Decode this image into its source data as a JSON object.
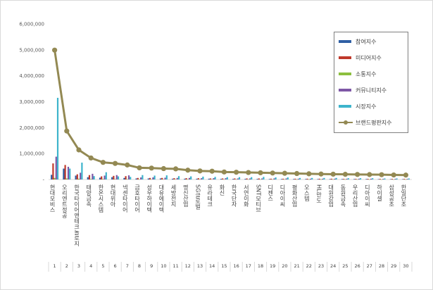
{
  "chart_data": {
    "type": "bar",
    "ylim": [
      0,
      6000000
    ],
    "yticks": [
      "6,000,000",
      "5,000,000",
      "4,000,000",
      "3,000,000",
      "2,000,000",
      "1,000,000",
      "-"
    ],
    "grid": false,
    "legend_position": "top-right",
    "categories": [
      "현대모비스",
      "오리엔트정공",
      "한국타이어앤테크놀로지",
      "태양금속",
      "한온시스템",
      "현대위아",
      "넥센타이어",
      "금호타이어",
      "성우하이텍",
      "대유에이텍",
      "세방전지",
      "명신산업",
      "SG글로벌",
      "유라테크",
      "화신",
      "한국단자",
      "서연이화",
      "SNT모티브",
      "디젠스",
      "디아이씨",
      "평화산업",
      "오스템",
      "HL만도",
      "대원강업",
      "동원금속",
      "우리산업",
      "디아이씨",
      "하이셀",
      "삼성공조",
      "한일단조"
    ],
    "numbers": [
      "1",
      "2",
      "3",
      "4",
      "5",
      "6",
      "7",
      "8",
      "9",
      "10",
      "11",
      "12",
      "13",
      "14",
      "15",
      "16",
      "17",
      "18",
      "19",
      "20",
      "21",
      "22",
      "23",
      "24",
      "25",
      "26",
      "27",
      "28",
      "29",
      "30"
    ],
    "series": [
      {
        "name": "참여지수",
        "color": "#2f5fa4",
        "values": [
          180000,
          420000,
          150000,
          90000,
          70000,
          90000,
          60000,
          40000,
          40000,
          40000,
          30000,
          30000,
          30000,
          30000,
          25000,
          25000,
          25000,
          25000,
          20000,
          20000,
          20000,
          20000,
          20000,
          20000,
          20000,
          20000,
          20000,
          15000,
          15000,
          15000
        ]
      },
      {
        "name": "미디어지수",
        "color": "#c0392b",
        "values": [
          620000,
          560000,
          200000,
          170000,
          120000,
          140000,
          130000,
          60000,
          60000,
          60000,
          50000,
          50000,
          50000,
          40000,
          40000,
          40000,
          40000,
          40000,
          30000,
          30000,
          30000,
          30000,
          30000,
          30000,
          25000,
          25000,
          25000,
          25000,
          25000,
          25000
        ]
      },
      {
        "name": "소통지수",
        "color": "#8cbf3f",
        "values": [
          60000,
          40000,
          30000,
          20000,
          20000,
          15000,
          15000,
          10000,
          10000,
          10000,
          10000,
          10000,
          10000,
          10000,
          8000,
          8000,
          8000,
          8000,
          8000,
          8000,
          6000,
          6000,
          6000,
          6000,
          6000,
          6000,
          6000,
          5000,
          5000,
          5000
        ]
      },
      {
        "name": "커뮤니티지수",
        "color": "#7e57a6",
        "values": [
          880000,
          490000,
          260000,
          220000,
          150000,
          170000,
          160000,
          80000,
          80000,
          70000,
          60000,
          60000,
          50000,
          50000,
          50000,
          40000,
          40000,
          40000,
          40000,
          40000,
          30000,
          30000,
          30000,
          30000,
          30000,
          30000,
          30000,
          25000,
          25000,
          25000
        ]
      },
      {
        "name": "시장지수",
        "color": "#3db4cc",
        "values": [
          3150000,
          420000,
          650000,
          130000,
          280000,
          120000,
          100000,
          170000,
          150000,
          160000,
          130000,
          120000,
          110000,
          100000,
          90000,
          90000,
          90000,
          100000,
          80000,
          80000,
          60000,
          60000,
          60000,
          60000,
          50000,
          50000,
          50000,
          40000,
          40000,
          40000
        ]
      },
      {
        "name": "브랜드평판지수",
        "color": "#938953",
        "type": "line",
        "values": [
          4990000,
          1870000,
          1140000,
          830000,
          660000,
          620000,
          560000,
          450000,
          440000,
          420000,
          410000,
          360000,
          330000,
          320000,
          290000,
          280000,
          270000,
          260000,
          250000,
          240000,
          230000,
          220000,
          210000,
          205000,
          200000,
          195000,
          190000,
          185000,
          175000,
          170000
        ]
      }
    ]
  }
}
